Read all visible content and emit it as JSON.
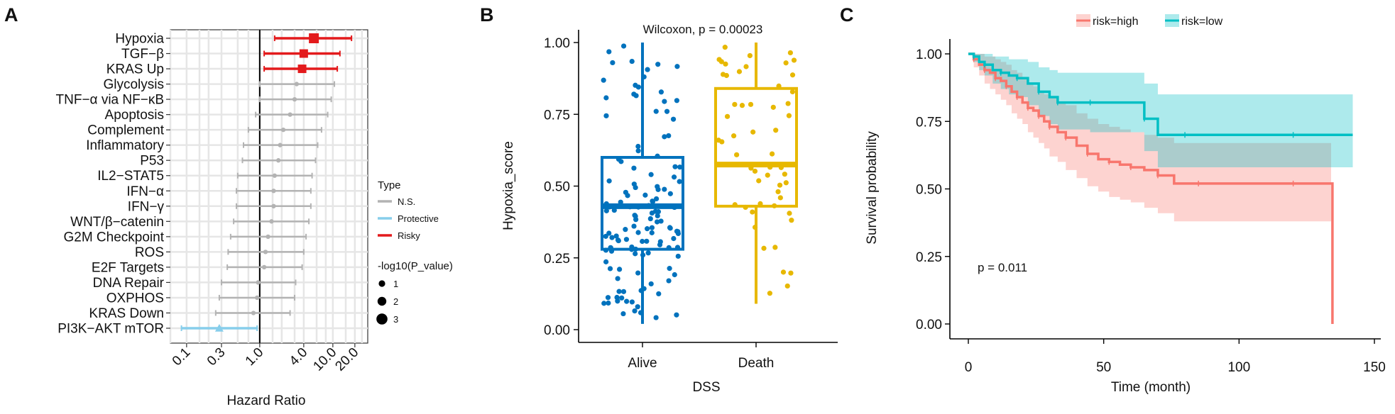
{
  "panel_labels": [
    "A",
    "B",
    "C"
  ],
  "chart_data": [
    {
      "type": "forest",
      "panel": "A",
      "title": "",
      "xlabel": "Hazard Ratio",
      "xscale": "log",
      "xlim": [
        0.06,
        30
      ],
      "xticks": [
        0.1,
        0.3,
        1.0,
        4.0,
        10.0,
        20.0
      ],
      "xtick_labels": [
        "0.1",
        "0.3",
        "1.0",
        "4.0",
        "10.0",
        "20.0"
      ],
      "reference_line": 1.0,
      "grid": true,
      "rows": [
        {
          "label": "Hypoxia",
          "hr": 5.5,
          "lo": 1.6,
          "hi": 18.0,
          "type": "Risky",
          "size": 3
        },
        {
          "label": "TGF−β",
          "hr": 4.0,
          "lo": 1.15,
          "hi": 12.5,
          "type": "Risky",
          "size": 2
        },
        {
          "label": "KRAS Up",
          "hr": 3.8,
          "lo": 1.15,
          "hi": 11.5,
          "type": "Risky",
          "size": 2
        },
        {
          "label": "Glycolysis",
          "hr": 3.2,
          "lo": 1.0,
          "hi": 10.5,
          "type": "N.S.",
          "size": 1
        },
        {
          "label": "TNF−α via NF−κB",
          "hr": 3.0,
          "lo": 1.0,
          "hi": 9.5,
          "type": "N.S.",
          "size": 1
        },
        {
          "label": "Apoptosis",
          "hr": 2.6,
          "lo": 0.88,
          "hi": 8.5,
          "type": "N.S.",
          "size": 1
        },
        {
          "label": "Complement",
          "hr": 2.1,
          "lo": 0.7,
          "hi": 7.0,
          "type": "N.S.",
          "size": 1
        },
        {
          "label": "Inflammatory",
          "hr": 1.9,
          "lo": 0.6,
          "hi": 6.2,
          "type": "N.S.",
          "size": 1
        },
        {
          "label": "P53",
          "hr": 1.8,
          "lo": 0.58,
          "hi": 5.8,
          "type": "N.S.",
          "size": 1
        },
        {
          "label": "IL2−STAT5",
          "hr": 1.6,
          "lo": 0.5,
          "hi": 5.2,
          "type": "N.S.",
          "size": 1
        },
        {
          "label": "IFN−α",
          "hr": 1.55,
          "lo": 0.48,
          "hi": 5.0,
          "type": "N.S.",
          "size": 1
        },
        {
          "label": "IFN−γ",
          "hr": 1.55,
          "lo": 0.48,
          "hi": 5.0,
          "type": "N.S.",
          "size": 1
        },
        {
          "label": "WNT/β−catenin",
          "hr": 1.45,
          "lo": 0.44,
          "hi": 4.7,
          "type": "N.S.",
          "size": 1
        },
        {
          "label": "G2M Checkpoint",
          "hr": 1.3,
          "lo": 0.4,
          "hi": 4.3,
          "type": "N.S.",
          "size": 1
        },
        {
          "label": "ROS",
          "hr": 1.2,
          "lo": 0.37,
          "hi": 4.0,
          "type": "N.S.",
          "size": 1
        },
        {
          "label": "E2F Targets",
          "hr": 1.15,
          "lo": 0.36,
          "hi": 3.8,
          "type": "N.S.",
          "size": 1
        },
        {
          "label": "DNA Repair",
          "hr": 0.95,
          "lo": 0.3,
          "hi": 3.1,
          "type": "N.S.",
          "size": 1
        },
        {
          "label": "OXPHOS",
          "hr": 0.92,
          "lo": 0.28,
          "hi": 3.0,
          "type": "N.S.",
          "size": 1
        },
        {
          "label": "KRAS Down",
          "hr": 0.82,
          "lo": 0.25,
          "hi": 2.6,
          "type": "N.S.",
          "size": 1
        },
        {
          "label": "PI3K−AKT mTOR",
          "hr": 0.28,
          "lo": 0.085,
          "hi": 0.92,
          "type": "Protective",
          "size": 2
        }
      ],
      "legend_type_title": "Type",
      "legend_types": [
        {
          "name": "N.S.",
          "color": "#b3b3b3"
        },
        {
          "name": "Protective",
          "color": "#87ceeb"
        },
        {
          "name": "Risky",
          "color": "#e31a1c"
        }
      ],
      "legend_size_title": "-log10(P_value)",
      "legend_sizes": [
        1,
        2,
        3
      ],
      "legend_size_labels": [
        "1",
        "2",
        "3"
      ]
    },
    {
      "type": "boxplot",
      "panel": "B",
      "title": "Wilcoxon, p = 0.00023",
      "xlabel": "DSS",
      "ylabel": "Hypoxia_score",
      "ylim": [
        0,
        1
      ],
      "yticks": [
        0,
        0.25,
        0.5,
        0.75,
        1.0
      ],
      "ytick_labels": [
        "0.00",
        "0.25",
        "0.50",
        "0.75",
        "1.00"
      ],
      "categories": [
        "Alive",
        "Death"
      ],
      "colors": [
        "#0072bd",
        "#e7b800"
      ],
      "boxes": [
        {
          "name": "Alive",
          "min": 0.02,
          "q1": 0.28,
          "median": 0.43,
          "q3": 0.6,
          "max": 1.0,
          "n": 130
        },
        {
          "name": "Death",
          "min": 0.09,
          "q1": 0.43,
          "median": 0.575,
          "q3": 0.84,
          "max": 1.0,
          "n": 55
        }
      ]
    },
    {
      "type": "survival",
      "panel": "C",
      "xlabel": "Time (month)",
      "ylabel": "Survival probability",
      "xlim": [
        -5,
        155
      ],
      "ylim": [
        0,
        1.05
      ],
      "xticks": [
        0,
        50,
        100,
        150
      ],
      "xtick_labels": [
        "0",
        "50",
        "100",
        "150"
      ],
      "yticks": [
        0,
        0.25,
        0.5,
        0.75,
        1.0
      ],
      "ytick_labels": [
        "0.00",
        "0.25",
        "0.50",
        "0.75",
        "1.00"
      ],
      "annotation": "p = 0.011",
      "series": [
        {
          "name": "risk=high",
          "color": "#f8766d",
          "x": [
            0,
            2,
            4,
            6,
            8,
            10,
            12,
            14,
            16,
            18,
            20,
            22,
            24,
            26,
            28,
            30,
            33,
            36,
            40,
            44,
            48,
            52,
            56,
            60,
            65,
            70,
            76,
            85,
            100,
            120,
            134,
            134.5
          ],
          "y": [
            1.0,
            0.98,
            0.96,
            0.94,
            0.93,
            0.91,
            0.9,
            0.88,
            0.86,
            0.84,
            0.82,
            0.8,
            0.79,
            0.77,
            0.75,
            0.73,
            0.71,
            0.69,
            0.66,
            0.63,
            0.61,
            0.6,
            0.59,
            0.58,
            0.57,
            0.55,
            0.52,
            0.52,
            0.52,
            0.52,
            0.52,
            0.0
          ],
          "lower": [
            1.0,
            0.95,
            0.92,
            0.89,
            0.87,
            0.85,
            0.83,
            0.81,
            0.78,
            0.76,
            0.74,
            0.71,
            0.69,
            0.67,
            0.65,
            0.62,
            0.6,
            0.57,
            0.54,
            0.51,
            0.49,
            0.47,
            0.46,
            0.45,
            0.43,
            0.41,
            0.38,
            0.38,
            0.38,
            0.38,
            0.38,
            0.38
          ],
          "upper": [
            1.0,
            1.0,
            1.0,
            0.99,
            0.99,
            0.98,
            0.97,
            0.96,
            0.94,
            0.93,
            0.91,
            0.89,
            0.88,
            0.86,
            0.85,
            0.84,
            0.82,
            0.81,
            0.78,
            0.76,
            0.74,
            0.73,
            0.72,
            0.71,
            0.7,
            0.69,
            0.67,
            0.67,
            0.67,
            0.67,
            0.67,
            0.67
          ]
        },
        {
          "name": "risk=low",
          "color": "#00bfc4",
          "x": [
            0,
            2,
            4,
            6,
            9,
            12,
            15,
            18,
            22,
            26,
            30,
            33,
            36,
            45,
            55,
            65,
            70,
            80,
            100,
            120,
            142
          ],
          "y": [
            1.0,
            0.99,
            0.97,
            0.96,
            0.94,
            0.93,
            0.92,
            0.91,
            0.89,
            0.86,
            0.84,
            0.82,
            0.82,
            0.82,
            0.82,
            0.76,
            0.7,
            0.7,
            0.7,
            0.7,
            0.7
          ],
          "lower": [
            1.0,
            0.97,
            0.94,
            0.92,
            0.89,
            0.87,
            0.85,
            0.84,
            0.81,
            0.77,
            0.74,
            0.72,
            0.72,
            0.71,
            0.71,
            0.64,
            0.58,
            0.58,
            0.58,
            0.58,
            0.58
          ],
          "upper": [
            1.0,
            1.0,
            1.0,
            1.0,
            0.99,
            0.99,
            0.98,
            0.98,
            0.97,
            0.95,
            0.94,
            0.93,
            0.93,
            0.93,
            0.93,
            0.89,
            0.85,
            0.85,
            0.85,
            0.85,
            0.85
          ]
        }
      ]
    }
  ]
}
